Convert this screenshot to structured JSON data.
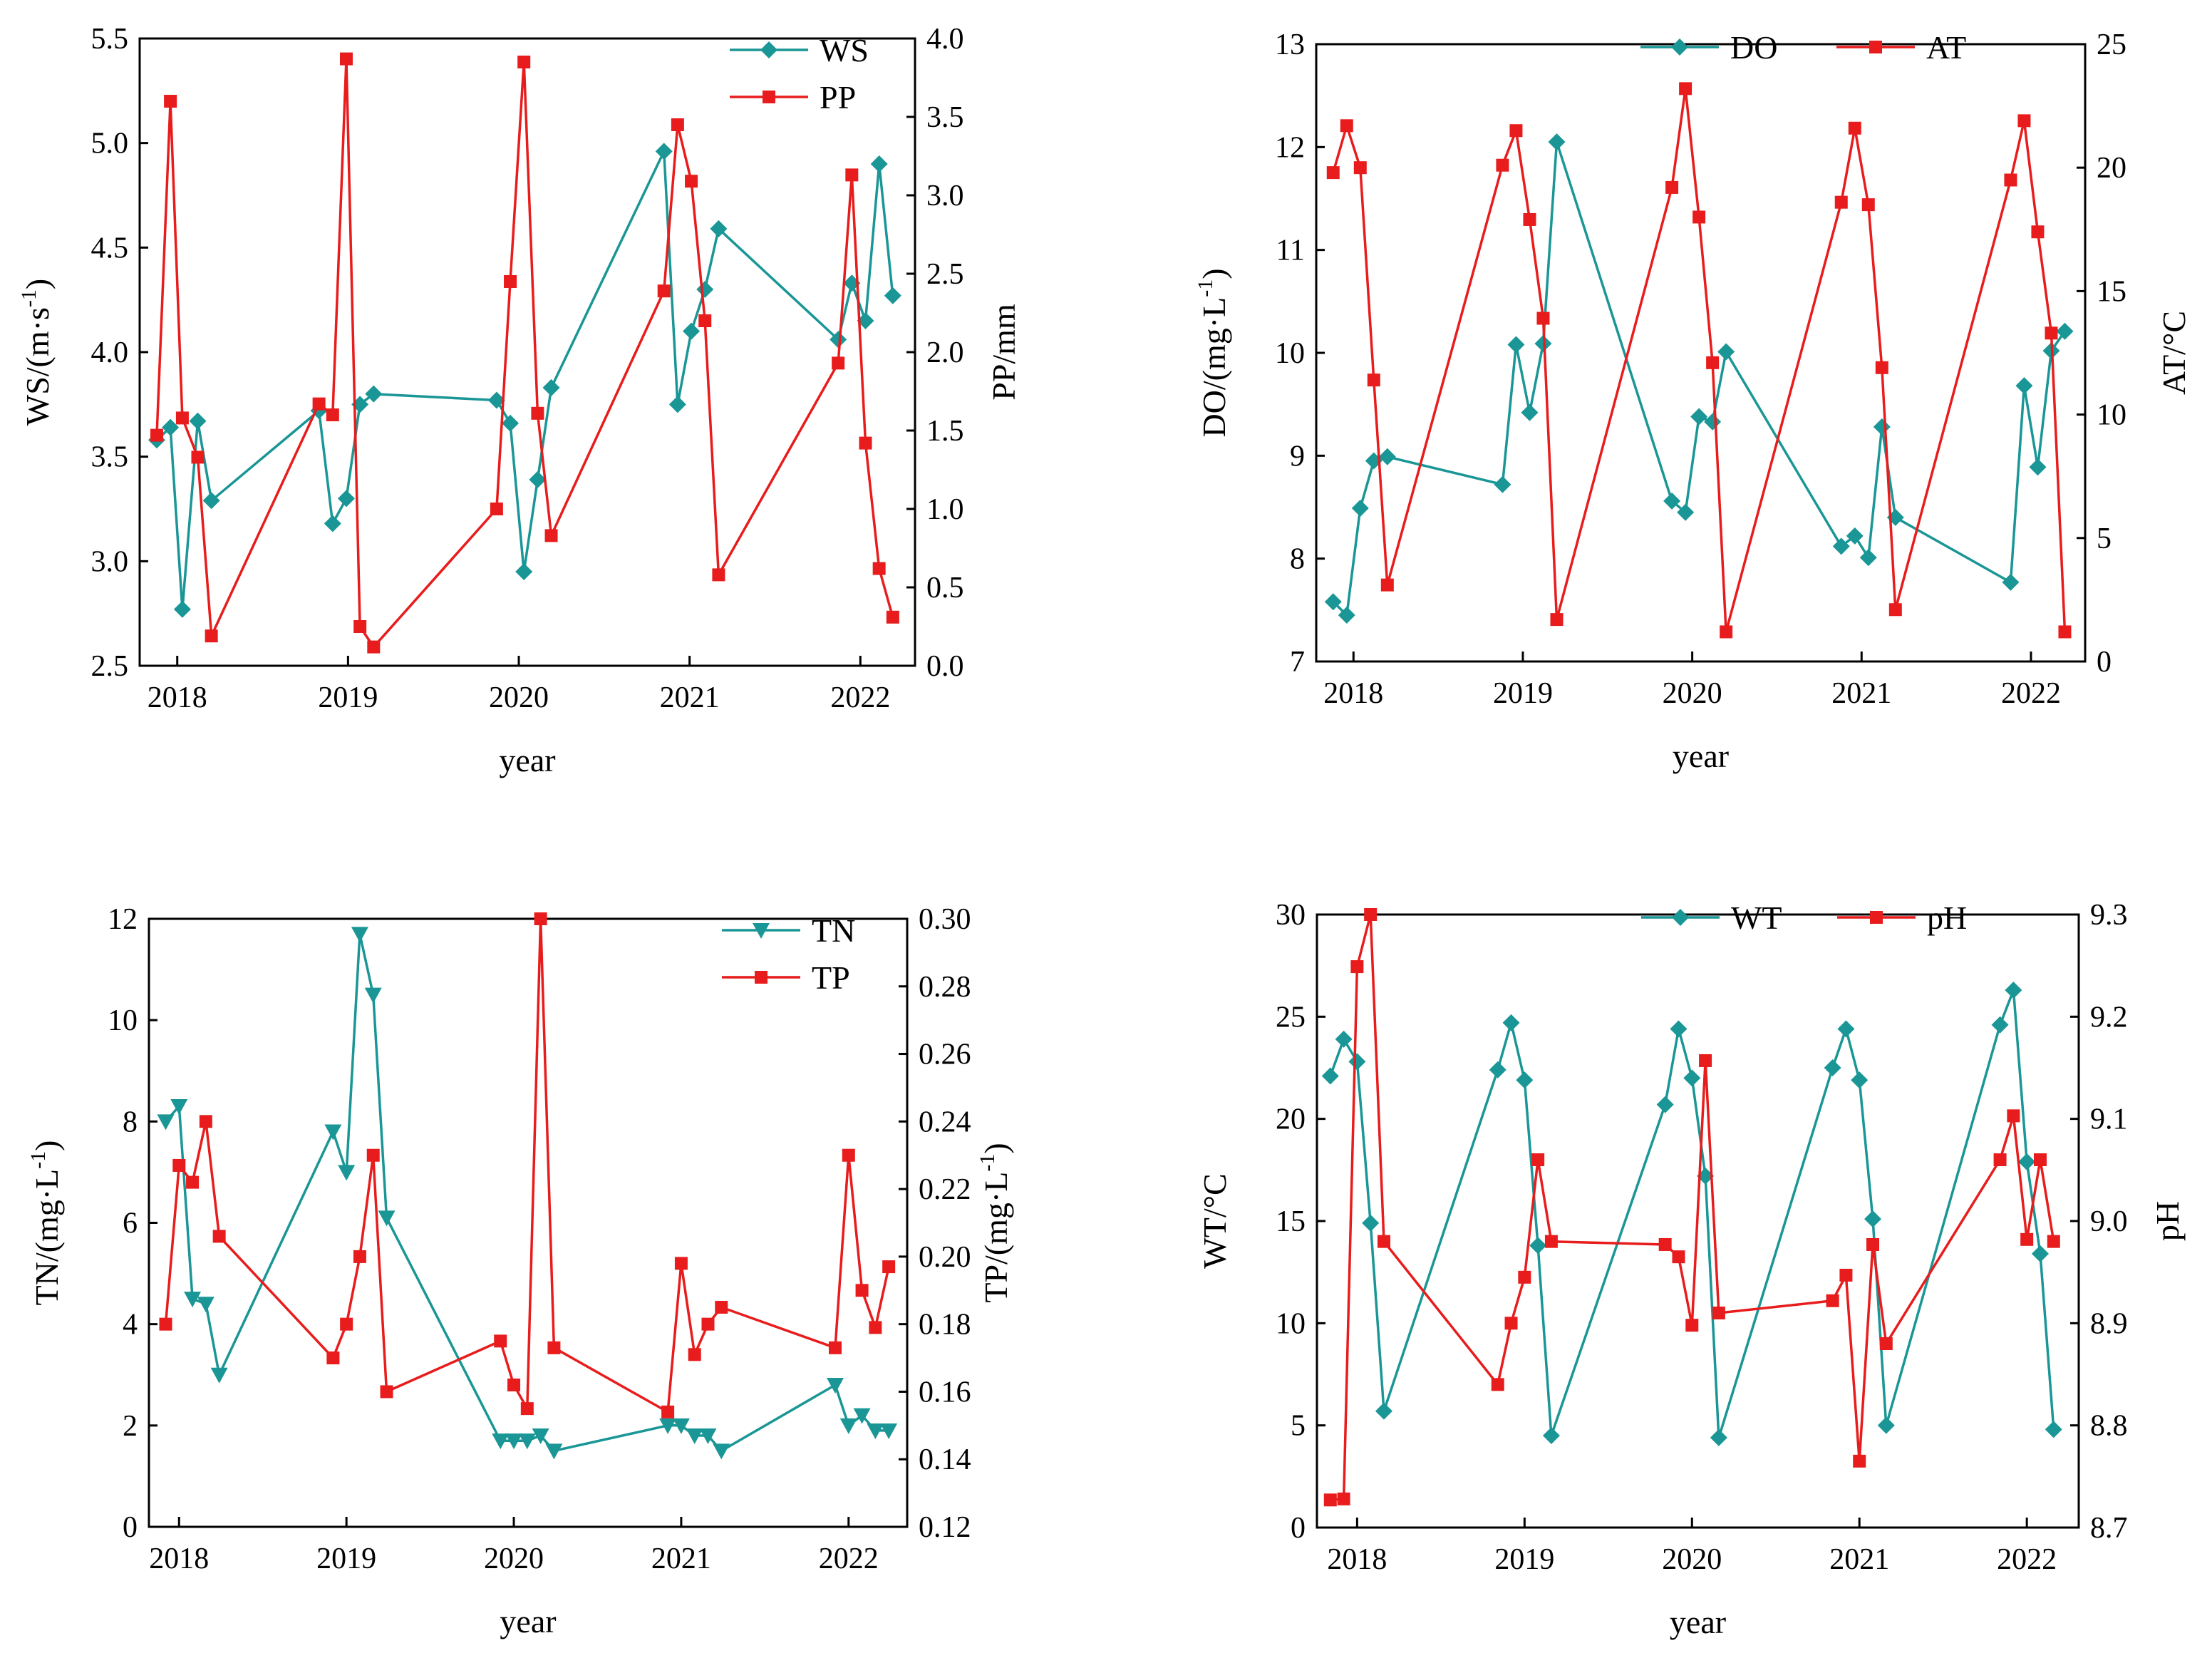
{
  "colors": {
    "teal": "#1a9696",
    "red": "#e81c1c",
    "axis": "#000000"
  },
  "chart_data": [
    {
      "type": "line",
      "xlabel": "year",
      "ylabel_left": "WS/(m·s-1)",
      "ylabel_right": "PP/mm",
      "x_ticks": [
        2018,
        2019,
        2020,
        2021,
        2022
      ],
      "xlim": [
        2017.78,
        2022.32
      ],
      "ylim_left": [
        2.5,
        5.5
      ],
      "yticks_left": [
        "2.5",
        "3.0",
        "3.5",
        "4.0",
        "4.5",
        "5.0",
        "5.5"
      ],
      "ylim_right": [
        0,
        4
      ],
      "yticks_right": [
        "0.0",
        "0.5",
        "1.0",
        "1.5",
        "2.0",
        "2.5",
        "3.0",
        "3.5",
        "4.0"
      ],
      "series": [
        {
          "name": "WS",
          "axis": "left",
          "marker": "diamond",
          "color": "#1a9696",
          "x": [
            2017.88,
            2017.96,
            2018.03,
            2018.12,
            2018.2,
            2018.83,
            2018.91,
            2018.99,
            2019.07,
            2019.15,
            2019.87,
            2019.95,
            2020.03,
            2020.11,
            2020.19,
            2020.85,
            2020.93,
            2021.01,
            2021.09,
            2021.17,
            2021.87,
            2021.95,
            2022.03,
            2022.11,
            2022.19
          ],
          "values": [
            3.58,
            3.64,
            2.77,
            3.67,
            3.29,
            3.72,
            3.18,
            3.3,
            3.75,
            3.8,
            3.77,
            3.66,
            2.95,
            3.39,
            3.83,
            4.96,
            3.75,
            4.1,
            4.3,
            4.59,
            4.06,
            4.33,
            4.15,
            4.9,
            4.27
          ]
        },
        {
          "name": "PP",
          "axis": "right",
          "marker": "square",
          "color": "#e81c1c",
          "x": [
            2017.88,
            2017.96,
            2018.03,
            2018.12,
            2018.2,
            2018.83,
            2018.91,
            2018.99,
            2019.07,
            2019.15,
            2019.87,
            2019.95,
            2020.03,
            2020.11,
            2020.19,
            2020.85,
            2020.93,
            2021.01,
            2021.09,
            2021.17,
            2021.87,
            2021.95,
            2022.03,
            2022.11,
            2022.19
          ],
          "values": [
            1.47,
            3.6,
            1.58,
            1.33,
            0.19,
            1.67,
            1.6,
            3.87,
            0.25,
            0.12,
            1.0,
            2.45,
            3.85,
            1.61,
            0.83,
            2.39,
            3.45,
            3.09,
            2.2,
            0.58,
            1.93,
            3.13,
            1.42,
            0.62,
            0.31
          ]
        }
      ]
    },
    {
      "type": "line",
      "xlabel": "year",
      "ylabel_left": "DO/(mg·L-1)",
      "ylabel_right": "AT/°C",
      "x_ticks": [
        2018,
        2019,
        2020,
        2021,
        2022
      ],
      "xlim": [
        2017.78,
        2022.32
      ],
      "ylim_left": [
        7,
        13
      ],
      "yticks_left": [
        "7",
        "8",
        "9",
        "10",
        "11",
        "12",
        "13"
      ],
      "ylim_right": [
        0,
        25
      ],
      "yticks_right": [
        "0",
        "5",
        "10",
        "15",
        "20",
        "25"
      ],
      "series": [
        {
          "name": "DO",
          "axis": "left",
          "marker": "diamond",
          "color": "#1a9696",
          "x": [
            2017.88,
            2017.96,
            2018.04,
            2018.12,
            2018.2,
            2018.88,
            2018.96,
            2019.04,
            2019.12,
            2019.2,
            2019.88,
            2019.96,
            2020.04,
            2020.12,
            2020.2,
            2020.88,
            2020.96,
            2021.04,
            2021.12,
            2021.2,
            2021.88,
            2021.96,
            2022.04,
            2022.12,
            2022.2
          ],
          "values": [
            7.58,
            7.45,
            8.49,
            8.95,
            8.99,
            8.72,
            10.08,
            9.42,
            10.09,
            12.05,
            8.56,
            8.45,
            9.38,
            9.33,
            10.01,
            8.12,
            8.22,
            8.01,
            9.28,
            8.4,
            7.77,
            9.68,
            8.89,
            10.02,
            10.21
          ]
        },
        {
          "name": "AT",
          "axis": "right",
          "marker": "square",
          "color": "#e81c1c",
          "x": [
            2017.88,
            2017.96,
            2018.04,
            2018.12,
            2018.2,
            2018.88,
            2018.96,
            2019.04,
            2019.12,
            2019.2,
            2019.88,
            2019.96,
            2020.04,
            2020.12,
            2020.2,
            2020.88,
            2020.96,
            2021.04,
            2021.12,
            2021.2,
            2021.88,
            2021.96,
            2022.04,
            2022.12,
            2022.2
          ],
          "values": [
            19.8,
            21.7,
            20.0,
            11.4,
            3.1,
            20.1,
            21.5,
            17.9,
            13.9,
            1.7,
            19.2,
            23.2,
            18.0,
            12.1,
            1.2,
            18.6,
            21.6,
            18.5,
            11.9,
            2.1,
            19.5,
            21.9,
            17.4,
            13.3,
            1.2
          ]
        }
      ]
    },
    {
      "type": "line",
      "xlabel": "year",
      "ylabel_left": "TN/(mg·L-1)",
      "ylabel_right": "TP/(mg·L-1)",
      "x_ticks": [
        2018,
        2019,
        2020,
        2021,
        2022
      ],
      "xlim": [
        2017.82,
        2022.35
      ],
      "ylim_left": [
        0,
        12
      ],
      "yticks_left": [
        "0",
        "2",
        "4",
        "6",
        "8",
        "10",
        "12"
      ],
      "ylim_right": [
        0.12,
        0.3
      ],
      "yticks_right": [
        "0.12",
        "0.14",
        "0.16",
        "0.18",
        "0.20",
        "0.22",
        "0.24",
        "0.26",
        "0.28",
        "0.30"
      ],
      "series": [
        {
          "name": "TN",
          "axis": "left",
          "marker": "triangle-down",
          "color": "#1a9696",
          "x": [
            2017.92,
            2018.0,
            2018.08,
            2018.16,
            2018.24,
            2018.92,
            2019.0,
            2019.08,
            2019.16,
            2019.24,
            2019.92,
            2020.0,
            2020.08,
            2020.16,
            2020.24,
            2020.92,
            2021.0,
            2021.08,
            2021.16,
            2021.24,
            2021.92,
            2022.0,
            2022.08,
            2022.16,
            2022.24
          ],
          "values": [
            8.0,
            8.3,
            4.5,
            4.4,
            3.0,
            7.8,
            7.0,
            11.7,
            10.5,
            6.1,
            1.7,
            1.7,
            1.7,
            1.8,
            1.5,
            2.0,
            2.0,
            1.8,
            1.8,
            1.5,
            2.8,
            2.0,
            2.2,
            1.9,
            1.9
          ]
        },
        {
          "name": "TP",
          "axis": "right",
          "marker": "square",
          "color": "#e81c1c",
          "x": [
            2017.92,
            2018.0,
            2018.08,
            2018.16,
            2018.24,
            2018.92,
            2019.0,
            2019.08,
            2019.16,
            2019.24,
            2019.92,
            2020.0,
            2020.08,
            2020.16,
            2020.24,
            2020.92,
            2021.0,
            2021.08,
            2021.16,
            2021.24,
            2021.92,
            2022.0,
            2022.08,
            2022.16,
            2022.24
          ],
          "values": [
            0.18,
            0.227,
            0.222,
            0.24,
            0.206,
            0.17,
            0.18,
            0.2,
            0.23,
            0.16,
            0.175,
            0.162,
            0.155,
            0.3,
            0.173,
            0.154,
            0.198,
            0.171,
            0.18,
            0.185,
            0.173,
            0.23,
            0.19,
            0.179,
            0.197
          ]
        }
      ]
    },
    {
      "type": "line",
      "xlabel": "year",
      "ylabel_left": "WT/°C",
      "ylabel_right": "pH",
      "x_ticks": [
        2018,
        2019,
        2020,
        2021,
        2022
      ],
      "xlim": [
        2017.76,
        2022.31
      ],
      "ylim_left": [
        0,
        30
      ],
      "yticks_left": [
        "0",
        "5",
        "10",
        "15",
        "20",
        "25",
        "30"
      ],
      "ylim_right": [
        8.7,
        9.3
      ],
      "yticks_right": [
        "8.7",
        "8.8",
        "8.9",
        "9.0",
        "9.1",
        "9.2",
        "9.3"
      ],
      "series": [
        {
          "name": "WT",
          "axis": "left",
          "marker": "diamond",
          "color": "#1a9696",
          "x": [
            2017.84,
            2017.92,
            2018.0,
            2018.08,
            2018.16,
            2018.84,
            2018.92,
            2019.0,
            2019.08,
            2019.16,
            2019.84,
            2019.92,
            2020.0,
            2020.08,
            2020.16,
            2020.84,
            2020.92,
            2021.0,
            2021.08,
            2021.16,
            2021.84,
            2021.92,
            2022.0,
            2022.08,
            2022.16
          ],
          "values": [
            22.1,
            23.9,
            22.8,
            14.9,
            5.7,
            22.4,
            24.7,
            21.9,
            13.8,
            4.5,
            20.7,
            24.4,
            22.0,
            17.2,
            4.4,
            22.5,
            24.4,
            21.9,
            15.1,
            5.0,
            24.6,
            26.3,
            17.9,
            13.4,
            4.8
          ]
        },
        {
          "name": "pH",
          "axis": "right",
          "marker": "square",
          "color": "#e81c1c",
          "x": [
            2017.84,
            2017.92,
            2018.0,
            2018.08,
            2018.16,
            2018.84,
            2018.92,
            2019.0,
            2019.08,
            2019.16,
            2019.84,
            2019.92,
            2020.0,
            2020.08,
            2020.16,
            2020.84,
            2020.92,
            2021.0,
            2021.08,
            2021.16,
            2021.84,
            2021.92,
            2022.0,
            2022.08,
            2022.16
          ],
          "values": [
            8.727,
            8.728,
            9.249,
            9.3,
            8.98,
            8.84,
            8.9,
            8.945,
            9.06,
            8.98,
            8.977,
            8.965,
            8.898,
            9.157,
            8.91,
            8.922,
            8.947,
            8.765,
            8.977,
            8.88,
            9.06,
            9.103,
            8.982,
            9.06,
            8.98
          ]
        }
      ]
    }
  ]
}
